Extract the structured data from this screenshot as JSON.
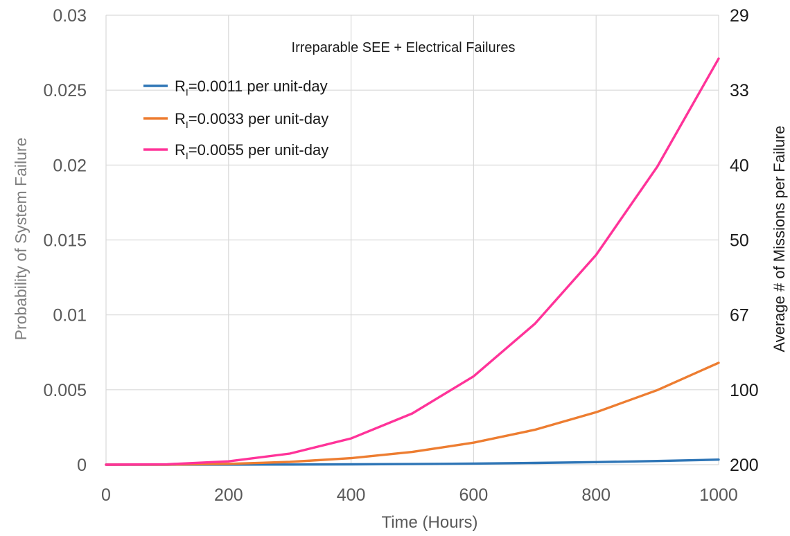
{
  "chart_data": {
    "type": "line",
    "title": "Irreparable SEE + Electrical Failures",
    "xlabel": "Time (Hours)",
    "ylabel": "Probability of System Failure",
    "y2label": "Average # of  Missions per Failure",
    "xlim": [
      0,
      1000
    ],
    "ylim": [
      0,
      0.03
    ],
    "x_ticks": [
      "0",
      "200",
      "400",
      "600",
      "800",
      "1000"
    ],
    "y_ticks": [
      "0",
      "0.005",
      "0.01",
      "0.015",
      "0.02",
      "0.025",
      "0.03"
    ],
    "y2_ticks": [
      "200",
      "100",
      "67",
      "50",
      "40",
      "33",
      "29"
    ],
    "grid": true,
    "legend_position": "top-left",
    "series": [
      {
        "name_main": "R",
        "name_sub": "I",
        "name_rest": "=0.0011 per unit-day",
        "color": "#2e75b6",
        "x": [
          0,
          100,
          200,
          300,
          400,
          500,
          600,
          700,
          800,
          900,
          1000
        ],
        "y": [
          0,
          3e-07,
          2.7e-06,
          9e-06,
          2.15e-05,
          4.2e-05,
          7.25e-05,
          0.000115,
          0.000172,
          0.000245,
          0.000336
        ]
      },
      {
        "name_main": "R",
        "name_sub": "I",
        "name_rest": "=0.0033 per unit-day",
        "color": "#ed7d31",
        "x": [
          0,
          100,
          200,
          300,
          400,
          500,
          600,
          700,
          800,
          900,
          1000
        ],
        "y": [
          0,
          6.8e-06,
          5.44e-05,
          0.000184,
          0.000435,
          0.00085,
          0.00147,
          0.00233,
          0.0035,
          0.00498,
          0.0068
        ]
      },
      {
        "name_main": "R",
        "name_sub": "I",
        "name_rest": "=0.0055 per unit-day",
        "color": "#ff3399",
        "x": [
          0,
          100,
          200,
          300,
          400,
          500,
          600,
          700,
          800,
          900,
          1000
        ],
        "y": [
          0,
          2.7e-05,
          0.00022,
          0.00074,
          0.00175,
          0.00342,
          0.0059,
          0.0094,
          0.014,
          0.0199,
          0.0271
        ]
      }
    ]
  }
}
